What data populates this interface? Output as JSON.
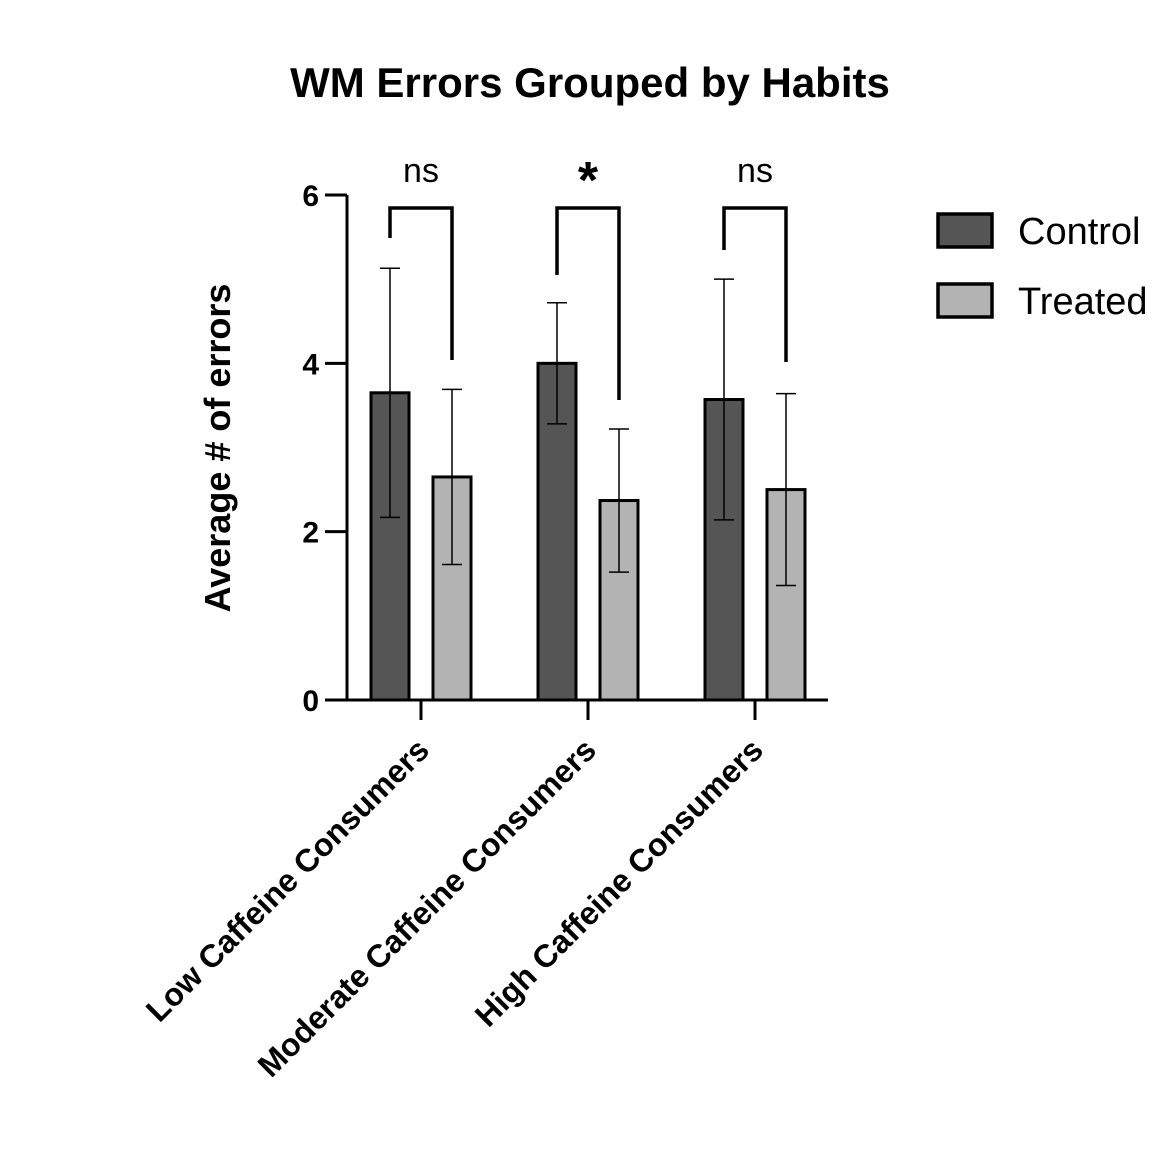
{
  "chart_data": {
    "type": "bar",
    "title": "WM Errors Grouped by Habits",
    "xlabel": "",
    "ylabel": "Average # of errors",
    "ylim": [
      0,
      6
    ],
    "yticks": [
      "0",
      "2",
      "4",
      "6"
    ],
    "categories": [
      "Low Caffeine Consumers",
      "Moderate Caffeine Consumers",
      "High Caffeine Consumers"
    ],
    "series": [
      {
        "name": "Control",
        "values": [
          3.65,
          4.0,
          3.57
        ],
        "error": [
          1.48,
          0.72,
          1.43
        ],
        "color": "#555555"
      },
      {
        "name": "Treated",
        "values": [
          2.65,
          2.37,
          2.5
        ],
        "error": [
          1.04,
          0.85,
          1.14
        ],
        "color": "#b3b3b3"
      }
    ],
    "significance": [
      "ns",
      "*",
      "ns"
    ],
    "legend_position": "right",
    "grid": false
  }
}
